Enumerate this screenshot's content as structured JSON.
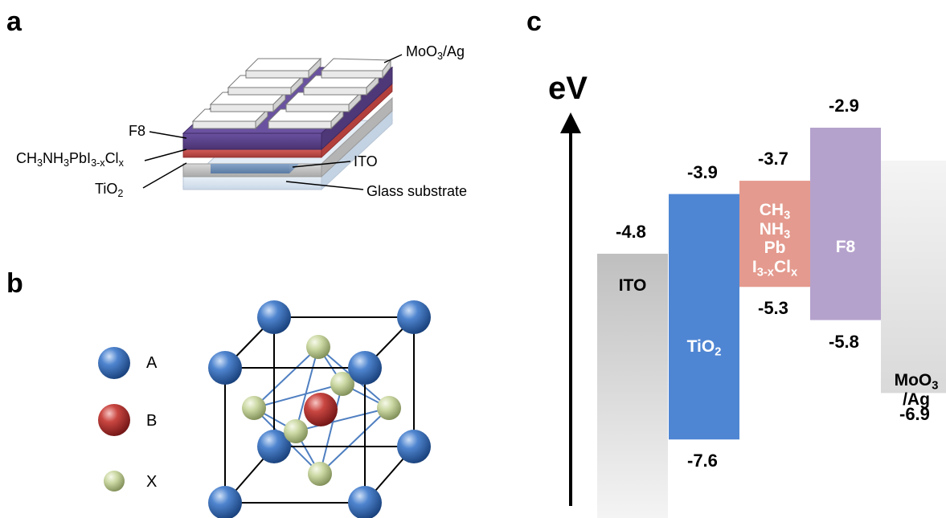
{
  "panels": {
    "a": "a",
    "b": "b",
    "c": "c"
  },
  "panel_a": {
    "labels": {
      "moo3": "MoO₃/Ag",
      "f8": "F8",
      "perovskite": "CH₃NH₃PbI₃₋ₓClₓ",
      "tio2": "TiO₂",
      "ito": "ITO",
      "glass": "Glass substrate"
    },
    "colors": {
      "glass": "#dbe7f3",
      "tio2": "#c7c7c7",
      "ito": "#6f8fb5",
      "perovskite": "#c0504d",
      "f8": "#5b4288",
      "contact": "#ffffff"
    }
  },
  "panel_b": {
    "legend": [
      {
        "label": "A",
        "color": "#2f63a8",
        "icon": "blue-sphere-icon"
      },
      {
        "label": "B",
        "color": "#b9312f",
        "icon": "red-sphere-icon"
      },
      {
        "label": "X",
        "color": "#c5d49a",
        "icon": "green-sphere-icon"
      }
    ]
  },
  "panel_c": {
    "axis_label": "eV",
    "bars": [
      {
        "name": "ITO",
        "label_html": "ITO",
        "top": -4.8,
        "bottom": null,
        "top_label": "-4.8",
        "bottom_label": "",
        "color": "#bfbfbf",
        "label_color": "#000000"
      },
      {
        "name": "TiO2",
        "label_html": "TiO<sub>2</sub>",
        "top": -3.9,
        "bottom": -7.6,
        "top_label": "-3.9",
        "bottom_label": "-7.6",
        "color": "#4f86d3",
        "label_color": "#ffffff"
      },
      {
        "name": "CH3NH3PbI3-xClx",
        "label_html": "CH<sub>3</sub><br>NH<sub>3</sub><br>Pb<br>I<sub>3-x</sub>Cl<sub>x</sub>",
        "top": -3.7,
        "bottom": -5.3,
        "top_label": "-3.7",
        "bottom_label": "-5.3",
        "color": "#e49a8e",
        "label_color": "#ffffff"
      },
      {
        "name": "F8",
        "label_html": "F8",
        "top": -2.9,
        "bottom": -5.8,
        "top_label": "-2.9",
        "bottom_label": "-5.8",
        "color": "#b5a2cc",
        "label_color": "#ffffff"
      },
      {
        "name": "MoO3/Ag",
        "label_html": "MoO<sub>3</sub><br>/Ag",
        "top": null,
        "bottom": -6.9,
        "top_label": "",
        "bottom_label": "-6.9",
        "color": "#d9d9d9",
        "label_color": "#000000"
      }
    ]
  }
}
